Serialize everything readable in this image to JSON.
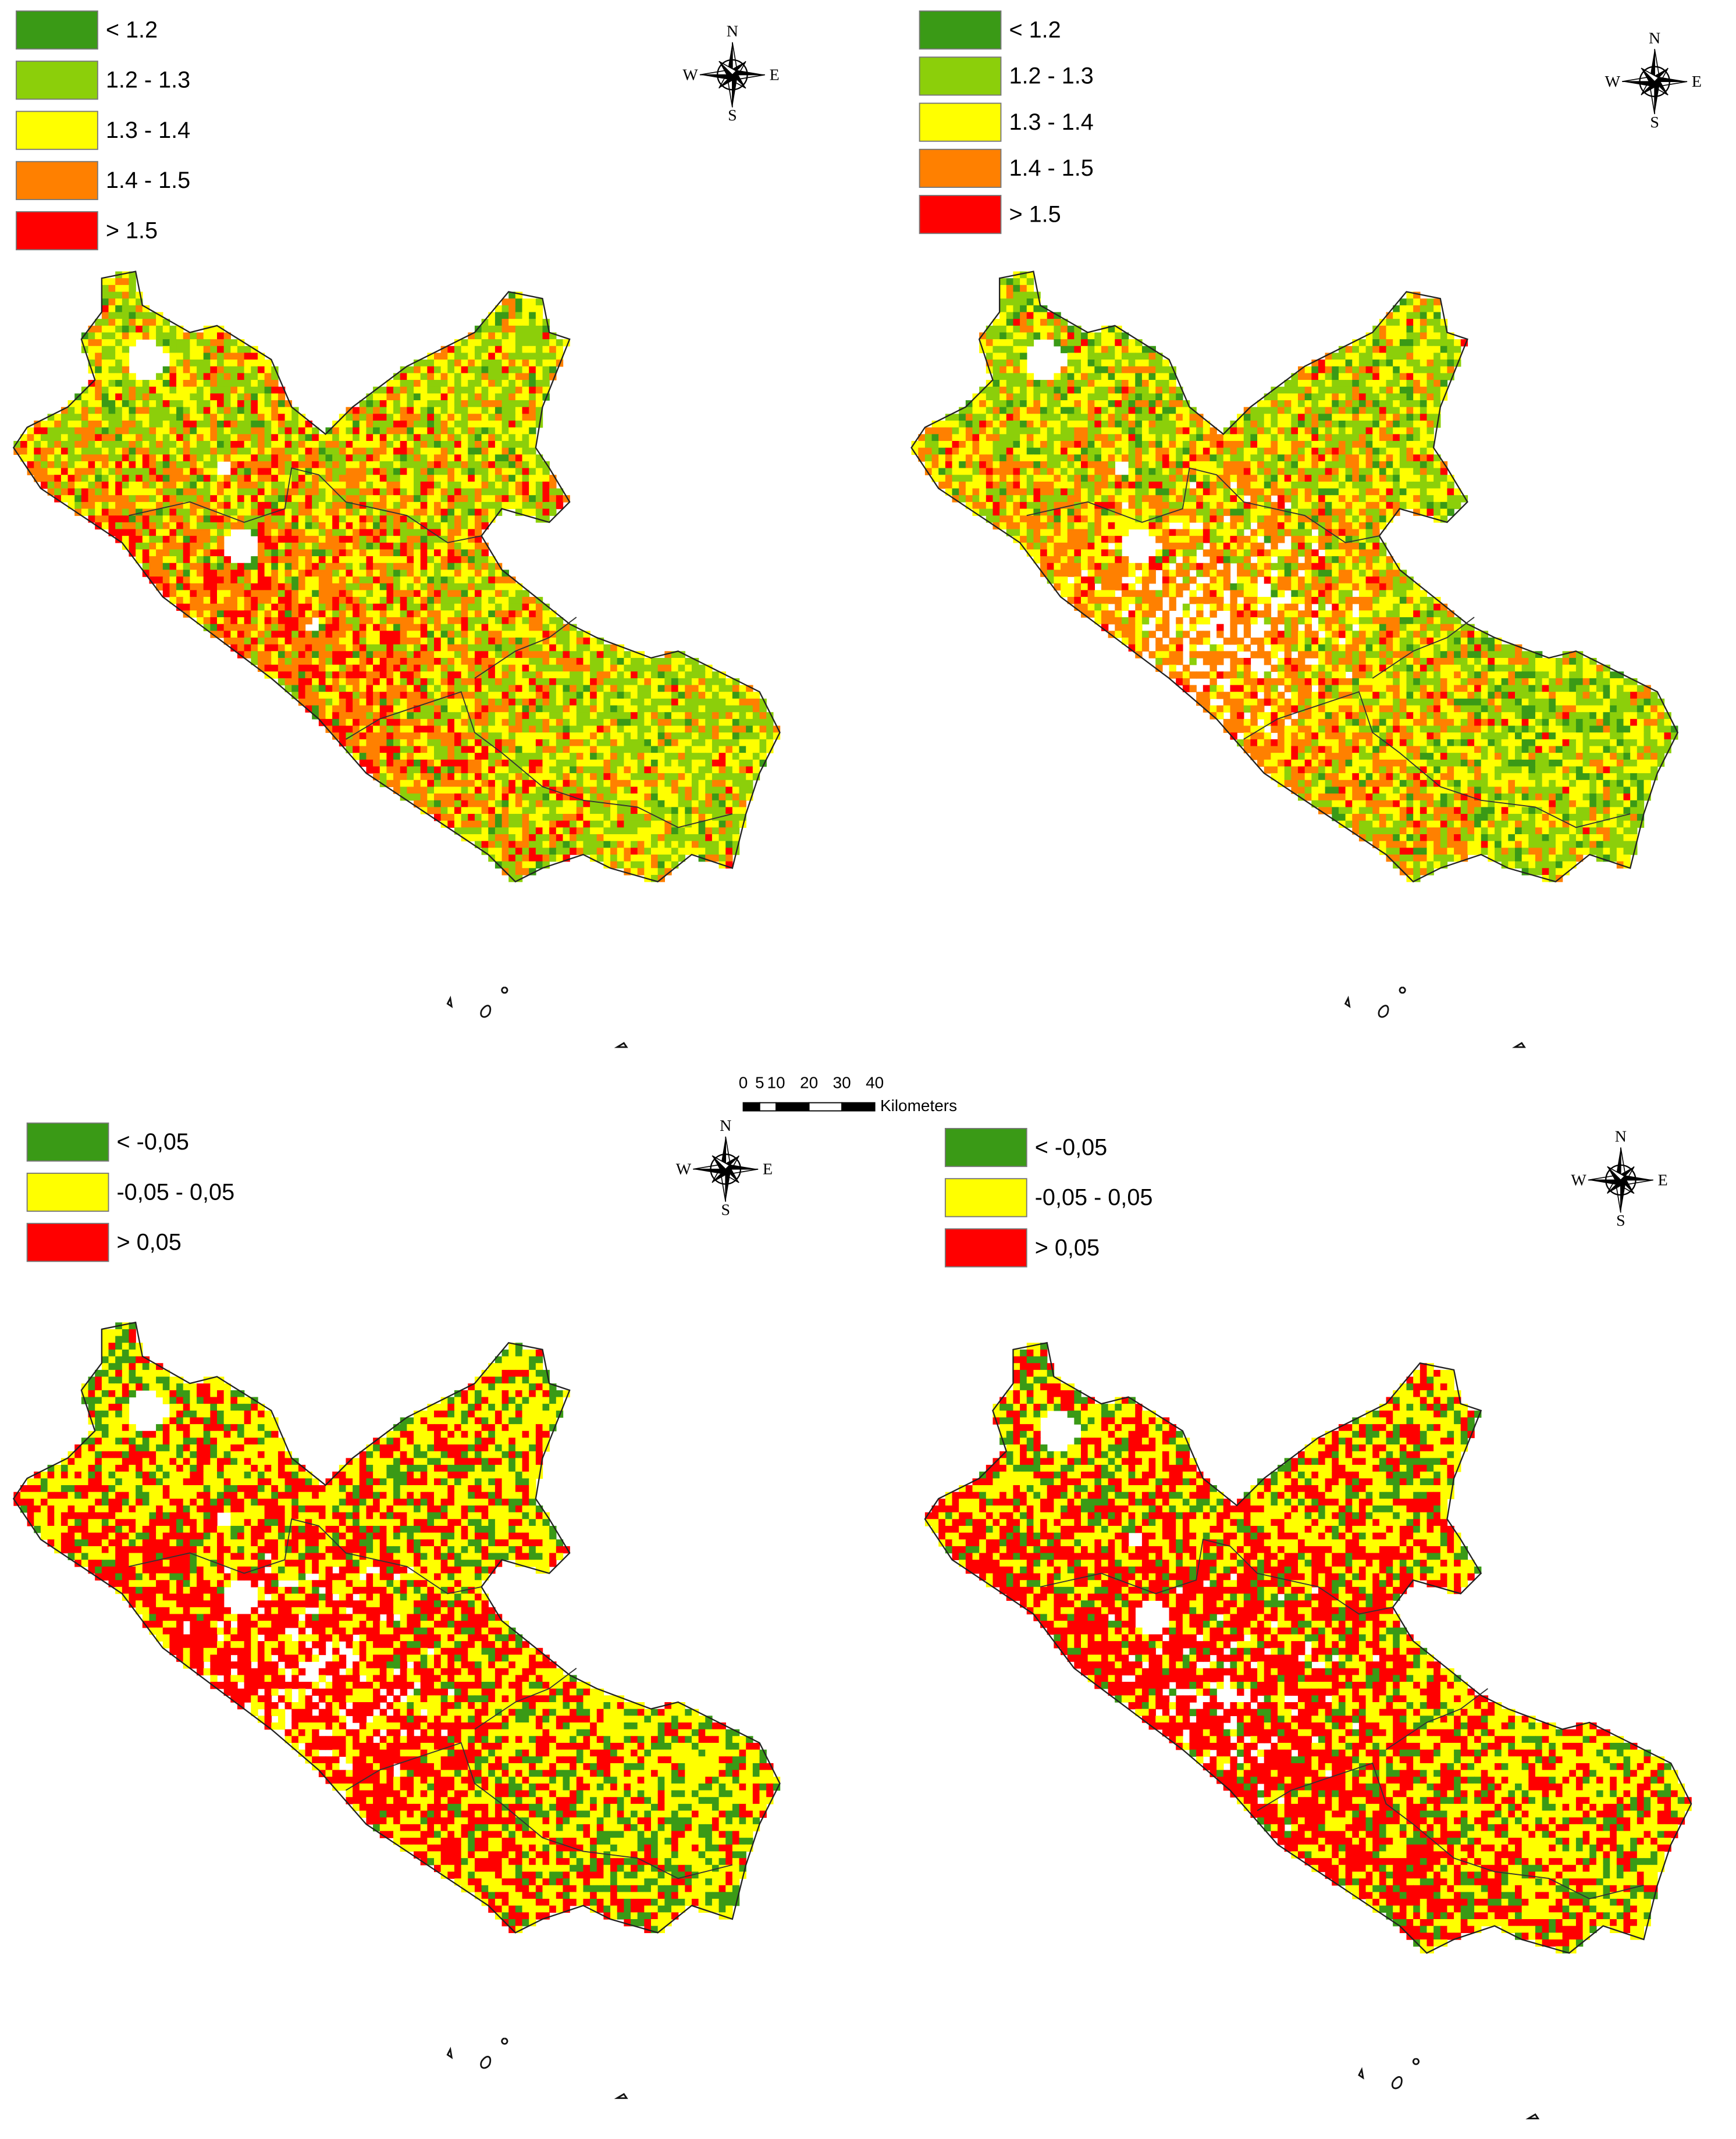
{
  "maps": [
    {
      "legend": [
        {
          "label": "< 1.2",
          "color": "#3a9a16"
        },
        {
          "label": "1.2 - 1.3",
          "color": "#8ccf0a"
        },
        {
          "label": "1.3 - 1.4",
          "color": "#ffff00"
        },
        {
          "label": "1.4 - 1.5",
          "color": "#ff8000"
        },
        {
          "label": "> 1.5",
          "color": "#ff0000"
        }
      ],
      "compass": {
        "north": "N",
        "east": "E",
        "south": "S",
        "west": "W"
      }
    },
    {
      "legend": [
        {
          "label": "< 1.2",
          "color": "#3a9a16"
        },
        {
          "label": "1.2 - 1.3",
          "color": "#8ccf0a"
        },
        {
          "label": "1.3 - 1.4",
          "color": "#ffff00"
        },
        {
          "label": "1.4 - 1.5",
          "color": "#ff8000"
        },
        {
          "label": "> 1.5",
          "color": "#ff0000"
        }
      ],
      "compass": {
        "north": "N",
        "east": "E",
        "south": "S",
        "west": "W"
      }
    },
    {
      "legend": [
        {
          "label": "< -0,05",
          "color": "#3a9a16"
        },
        {
          "label": "-0,05 - 0,05",
          "color": "#ffff00"
        },
        {
          "label": "> 0,05",
          "color": "#ff0000"
        }
      ],
      "compass": {
        "north": "N",
        "east": "E",
        "south": "S",
        "west": "W"
      }
    },
    {
      "legend": [
        {
          "label": "< -0,05",
          "color": "#3a9a16"
        },
        {
          "label": "-0,05 - 0,05",
          "color": "#ffff00"
        },
        {
          "label": "> 0,05",
          "color": "#ff0000"
        }
      ],
      "compass": {
        "north": "N",
        "east": "E",
        "south": "S",
        "west": "W"
      }
    }
  ],
  "scale_bar": {
    "ticks": [
      0,
      5,
      10,
      20,
      30,
      40
    ],
    "unit": "Kilometers"
  }
}
